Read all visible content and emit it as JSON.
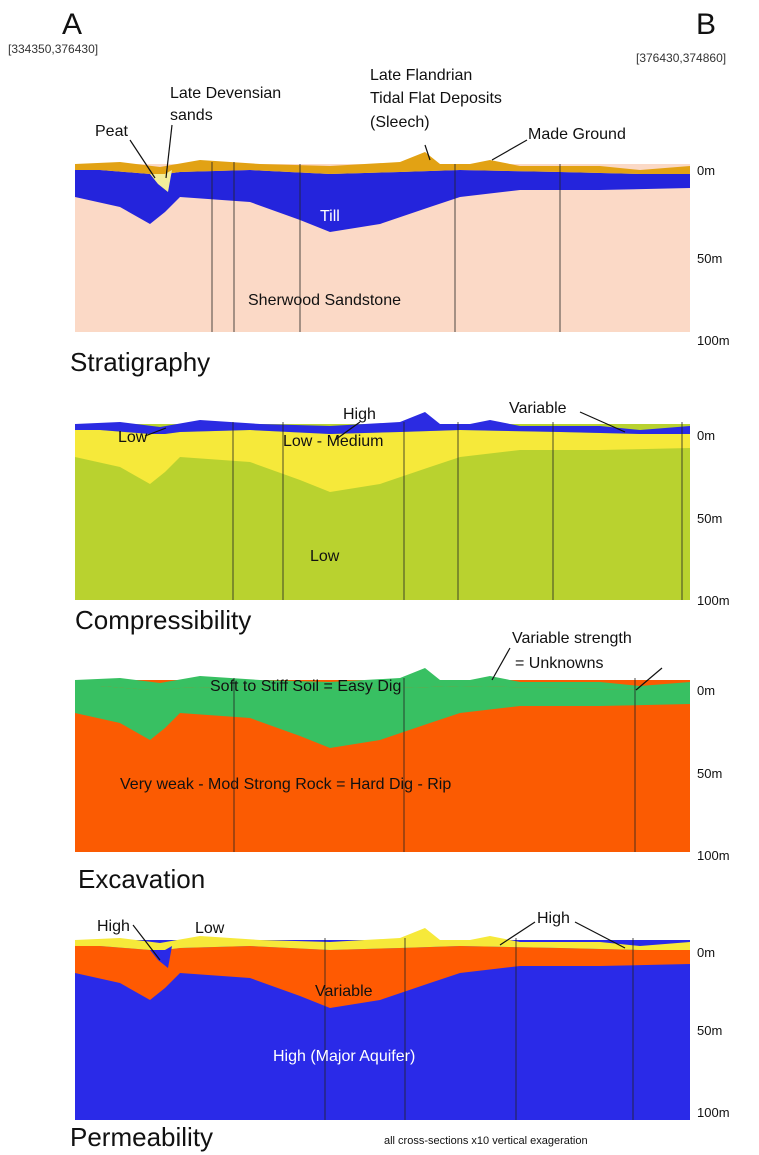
{
  "header": {
    "a_label": "A",
    "a_coords": "[334350,376430]",
    "b_label": "B",
    "b_coords": "[376430,374860]"
  },
  "sections": [
    {
      "title": "Stratigraphy",
      "depth_labels": [
        "0m",
        "50m",
        "100m"
      ],
      "annotations": [
        "Peat",
        "Late Devensian",
        "sands",
        "Late Flandrian",
        "Tidal Flat Deposits",
        "(Sleech)",
        "Made Ground",
        "Till",
        "Sherwood Sandstone"
      ]
    },
    {
      "title": "Compressibility",
      "depth_labels": [
        "0m",
        "50m",
        "100m"
      ],
      "annotations": [
        "High",
        "Variable",
        "Low",
        "Low - Medium",
        "Low"
      ]
    },
    {
      "title": "Excavation",
      "depth_labels": [
        "0m",
        "50m",
        "100m"
      ],
      "annotations": [
        "Variable strength",
        "= Unknowns",
        "Soft to Stiff Soil = Easy Dig",
        "Very weak - Mod Strong Rock = Hard Dig - Rip"
      ]
    },
    {
      "title": "Permeability",
      "depth_labels": [
        "0m",
        "50m",
        "100m"
      ],
      "annotations": [
        "High",
        "Low",
        "High",
        "Variable",
        "High (Major Aquifer)"
      ]
    }
  ],
  "note": "all cross-sections x10 vertical exageration"
}
